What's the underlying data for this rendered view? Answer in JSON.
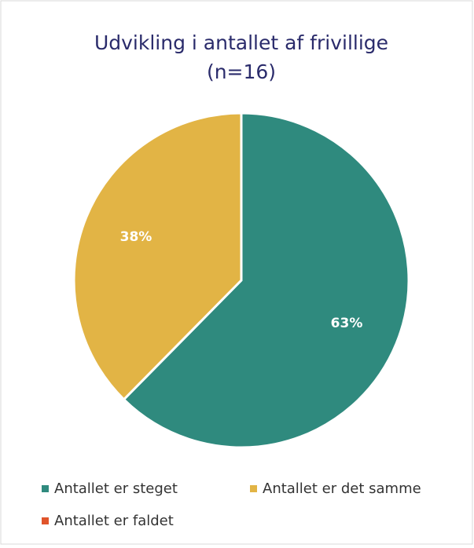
{
  "chart_data": {
    "type": "pie",
    "title": [
      "Udvikling i antallet af frivillige",
      "(n=16)"
    ],
    "categories": [
      "Antallet er steget",
      "Antallet er det samme",
      "Antallet er faldet"
    ],
    "values": [
      63,
      38,
      0
    ],
    "value_labels": [
      "63%",
      "38%",
      null
    ],
    "colors": [
      "#2f8a7e",
      "#e2b445",
      "#e0542b"
    ],
    "legend": "bottom"
  }
}
